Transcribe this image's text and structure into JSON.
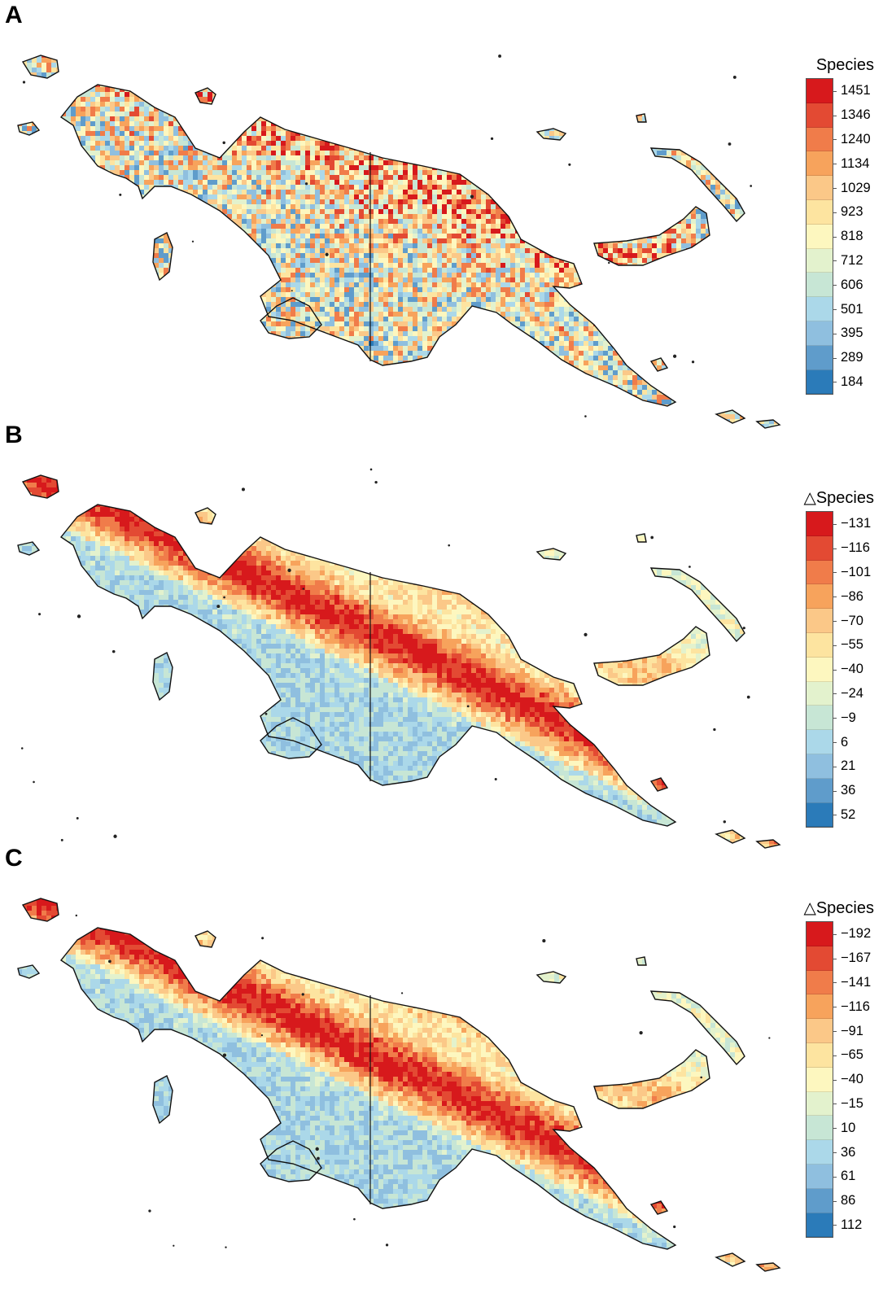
{
  "colors": {
    "ramp": [
      "#d7191c",
      "#e34a33",
      "#f07c4a",
      "#f7a35c",
      "#fbc888",
      "#fde4a0",
      "#fdf7bf",
      "#e3f2cd",
      "#c7e6d5",
      "#abd8e9",
      "#8fbfdf",
      "#5f9ccb",
      "#2b7bb9"
    ],
    "coast": "#111111"
  },
  "panels": [
    {
      "id": "A",
      "letter": "A",
      "legend_title": "Species",
      "legend_labels": [
        "1451",
        "1346",
        "1240",
        "1134",
        "1029",
        "923",
        "818",
        "712",
        "606",
        "501",
        "395",
        "289",
        "184"
      ],
      "pattern": "noisy"
    },
    {
      "id": "B",
      "letter": "B",
      "legend_title": "△Species",
      "legend_labels": [
        "−131",
        "−116",
        "−101",
        "−86",
        "−70",
        "−55",
        "−40",
        "−24",
        "−9",
        "6",
        "21",
        "36",
        "52"
      ],
      "pattern": "gradient"
    },
    {
      "id": "C",
      "letter": "C",
      "legend_title": "△Species",
      "legend_labels": [
        "−192",
        "−167",
        "−141",
        "−116",
        "−91",
        "−65",
        "−40",
        "−15",
        "10",
        "36",
        "61",
        "86",
        "112"
      ],
      "pattern": "gradient"
    }
  ]
}
